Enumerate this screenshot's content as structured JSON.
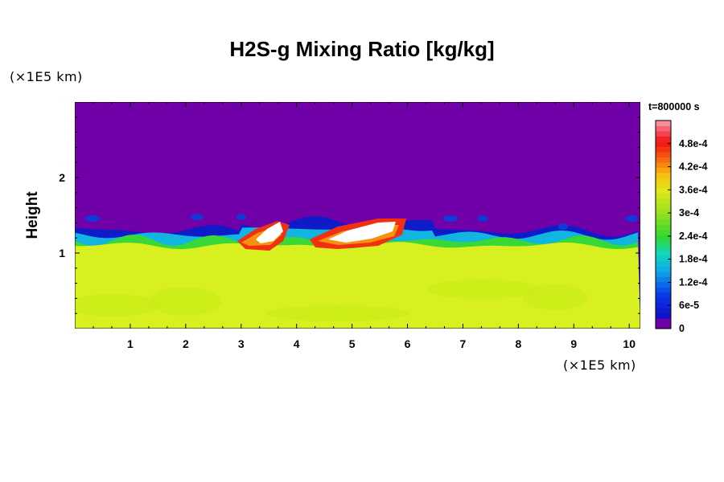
{
  "chart_data": {
    "type": "heatmap",
    "title": "H2S-g Mixing Ratio [kg/kg]",
    "xlabel": "",
    "ylabel": "Height",
    "x_unit": "(×1E5 km)",
    "y_unit": "(×1E5 km)",
    "time_label": "t=800000 s",
    "xlim": [
      0,
      10.2
    ],
    "ylim": [
      0,
      3.0
    ],
    "x_ticks": [
      "1",
      "2",
      "3",
      "4",
      "5",
      "6",
      "7",
      "8",
      "9",
      "10"
    ],
    "y_ticks": [
      "1",
      "2"
    ],
    "colorbar": {
      "range": [
        0,
        0.00054
      ],
      "tick_values": [
        0,
        6e-05,
        0.00012,
        0.00018,
        0.00024,
        0.0003,
        0.00036,
        0.00042,
        0.00048
      ],
      "tick_labels": [
        "0",
        "6e-5",
        "1.2e-4",
        "1.8e-4",
        "2.4e-4",
        "3e-4",
        "3.6e-4",
        "4.2e-4",
        "4.8e-4"
      ]
    },
    "layers": [
      {
        "region": "upper layer (above ~1.45)",
        "value": 0,
        "color": "#7000a8"
      },
      {
        "region": "lower layer (below ~1.1)",
        "value": 0.00035,
        "color": "#d8f020"
      },
      {
        "region": "white patch 1 (x≈3.3–3.8, y≈1.1–1.4)",
        "value": 0.00054,
        "color": "#ffffff"
      },
      {
        "region": "white patch 2 (x≈4.5–5.4, y≈1.15–1.4)",
        "value": 0.00054,
        "color": "#ffffff"
      }
    ]
  }
}
